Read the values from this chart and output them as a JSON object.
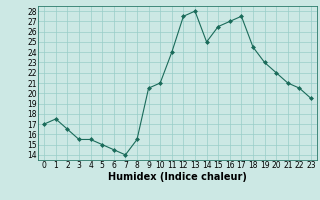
{
  "x": [
    0,
    1,
    2,
    3,
    4,
    5,
    6,
    7,
    8,
    9,
    10,
    11,
    12,
    13,
    14,
    15,
    16,
    17,
    18,
    19,
    20,
    21,
    22,
    23
  ],
  "y": [
    17,
    17.5,
    16.5,
    15.5,
    15.5,
    15,
    14.5,
    14,
    15.5,
    20.5,
    21,
    24,
    27.5,
    28,
    25,
    26.5,
    27,
    27.5,
    24.5,
    23,
    22,
    21,
    20.5,
    19.5
  ],
  "line_color": "#1a6b5a",
  "marker_color": "#1a6b5a",
  "bg_color": "#cce8e4",
  "grid_color": "#99cdc8",
  "xlabel": "Humidex (Indice chaleur)",
  "xlim": [
    -0.5,
    23.5
  ],
  "ylim": [
    13.5,
    28.5
  ],
  "yticks": [
    14,
    15,
    16,
    17,
    18,
    19,
    20,
    21,
    22,
    23,
    24,
    25,
    26,
    27,
    28
  ],
  "xticks": [
    0,
    1,
    2,
    3,
    4,
    5,
    6,
    7,
    8,
    9,
    10,
    11,
    12,
    13,
    14,
    15,
    16,
    17,
    18,
    19,
    20,
    21,
    22,
    23
  ],
  "label_fontsize": 7,
  "tick_fontsize": 5.5
}
